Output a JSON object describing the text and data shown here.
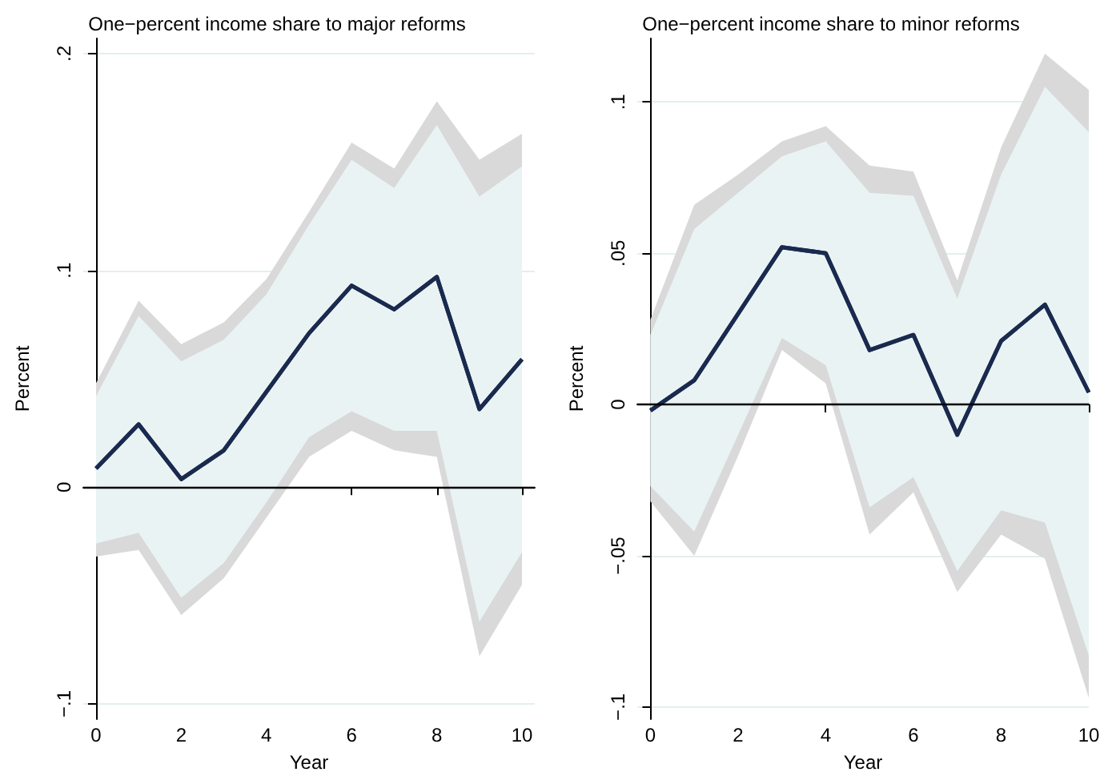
{
  "chart_data": [
    {
      "type": "line",
      "title": "One−percent income share to major reforms",
      "xlabel": "Year",
      "ylabel": "Percent",
      "x": [
        0,
        1,
        2,
        3,
        4,
        5,
        6,
        7,
        8,
        9,
        10
      ],
      "xlim": [
        -0.3,
        10.3
      ],
      "xticks": [
        0,
        2,
        4,
        6,
        8,
        10
      ],
      "ylim": [
        -0.107,
        0.207
      ],
      "yticks": [
        {
          "value": -0.1,
          "label": "−.1"
        },
        0,
        {
          "value": 0.1,
          "label": ".1"
        },
        {
          "value": 0.2,
          "label": ".2"
        }
      ],
      "grid": "y",
      "marker": "none",
      "line_style": "solid",
      "ref_lines": [
        {
          "axis": "y",
          "value": 0,
          "color": "#000000"
        }
      ],
      "series": [
        {
          "color": "#1a2a4f",
          "values": [
            0.0086,
            0.029,
            0.0037,
            0.017,
            0.044,
            0.071,
            0.093,
            0.082,
            0.097,
            0.036,
            0.059
          ],
          "lower": [
            -0.032,
            -0.029,
            -0.059,
            -0.042,
            -0.014,
            0.014,
            0.026,
            0.017,
            0.014,
            -0.078,
            -0.045
          ],
          "upper": [
            0.048,
            0.086,
            0.066,
            0.076,
            0.096,
            0.127,
            0.159,
            0.147,
            0.178,
            0.151,
            0.163
          ]
        },
        {
          "color": "#1a2a4f",
          "values": [
            0.0086,
            0.029,
            0.0037,
            0.017,
            0.044,
            0.071,
            0.093,
            0.082,
            0.097,
            0.036,
            0.059
          ],
          "lower": [
            -0.026,
            -0.021,
            -0.051,
            -0.035,
            -0.007,
            0.023,
            0.035,
            0.026,
            0.026,
            -0.062,
            -0.03
          ],
          "upper": [
            0.042,
            0.079,
            0.058,
            0.068,
            0.089,
            0.121,
            0.151,
            0.138,
            0.167,
            0.134,
            0.148
          ]
        }
      ]
    },
    {
      "type": "line",
      "title": "One−percent income share to minor reforms",
      "xlabel": "Year",
      "ylabel": "Percent",
      "x": [
        0,
        1,
        2,
        3,
        4,
        5,
        6,
        7,
        8,
        9,
        10
      ],
      "xlim": [
        -0.3,
        10
      ],
      "xticks": [
        0,
        2,
        4,
        6,
        8,
        10
      ],
      "ylim": [
        -0.104,
        0.121
      ],
      "yticks": [
        {
          "value": -0.1,
          "label": "−.1"
        },
        {
          "value": -0.05,
          "label": "−.05"
        },
        0,
        {
          "value": 0.05,
          "label": ".05"
        },
        {
          "value": 0.1,
          "label": ".1"
        }
      ],
      "grid": "y",
      "marker": "none",
      "line_style": "solid",
      "ref_lines": [
        {
          "axis": "y",
          "value": 0,
          "color": "#000000"
        }
      ],
      "series": [
        {
          "color": "#1a2a4f",
          "values": [
            -0.002,
            0.008,
            0.03,
            0.052,
            0.05,
            0.018,
            0.023,
            -0.01,
            0.021,
            0.033,
            0.004
          ],
          "lower": [
            -0.032,
            -0.05,
            -0.017,
            0.018,
            0.007,
            -0.043,
            -0.029,
            -0.062,
            -0.043,
            -0.051,
            -0.097
          ],
          "upper": [
            0.028,
            0.066,
            0.076,
            0.087,
            0.092,
            0.079,
            0.077,
            0.041,
            0.085,
            0.116,
            0.104
          ]
        },
        {
          "color": "#1a2a4f",
          "values": [
            -0.002,
            0.008,
            0.03,
            0.052,
            0.05,
            0.018,
            0.023,
            -0.01,
            0.021,
            0.033,
            0.004
          ],
          "lower": [
            -0.027,
            -0.042,
            -0.01,
            0.022,
            0.013,
            -0.034,
            -0.024,
            -0.055,
            -0.035,
            -0.039,
            -0.083
          ],
          "upper": [
            0.023,
            0.058,
            0.07,
            0.082,
            0.087,
            0.07,
            0.069,
            0.035,
            0.076,
            0.105,
            0.09
          ]
        }
      ]
    }
  ]
}
